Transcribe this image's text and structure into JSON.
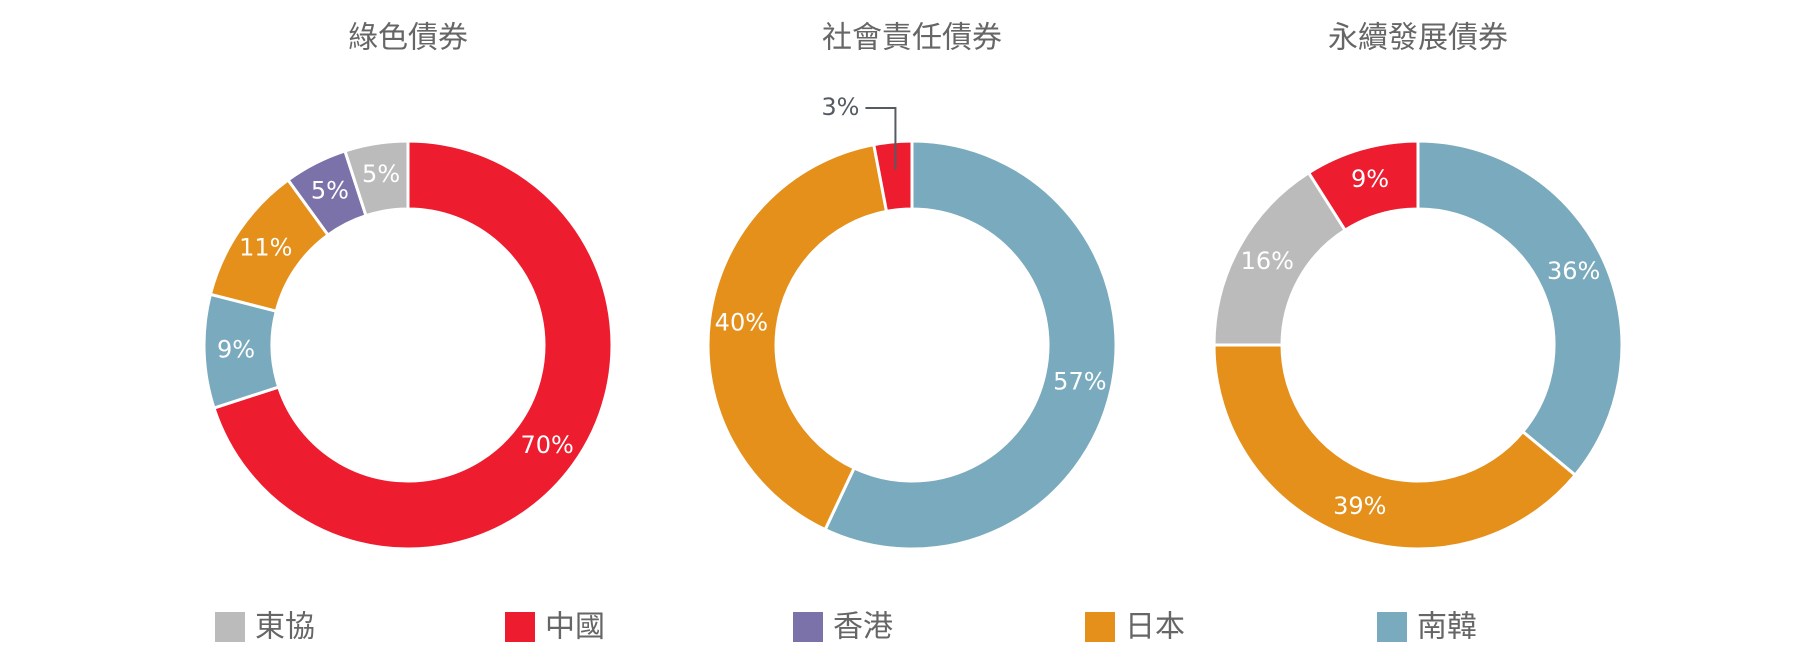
{
  "colors": {
    "東協": "#bbbbbb",
    "中國": "#ed1c2e",
    "香港": "#7a72a8",
    "日本": "#e4901b",
    "南韓": "#7aaabd"
  },
  "legend": [
    "東協",
    "中國",
    "香港",
    "日本",
    "南韓"
  ],
  "chart_data": [
    {
      "type": "pie",
      "title": "綠色債券",
      "slices": [
        {
          "category": "中國",
          "value": 70,
          "label": "70%"
        },
        {
          "category": "南韓",
          "value": 9,
          "label": "9%"
        },
        {
          "category": "日本",
          "value": 11,
          "label": "11%"
        },
        {
          "category": "香港",
          "value": 5,
          "label": "5%"
        },
        {
          "category": "東協",
          "value": 5,
          "label": "5%"
        }
      ]
    },
    {
      "type": "pie",
      "title": "社會責任債券",
      "slices": [
        {
          "category": "南韓",
          "value": 57,
          "label": "57%"
        },
        {
          "category": "日本",
          "value": 40,
          "label": "40%"
        },
        {
          "category": "中國",
          "value": 3,
          "label": "3%"
        }
      ]
    },
    {
      "type": "pie",
      "title": "永續發展債券",
      "slices": [
        {
          "category": "南韓",
          "value": 36,
          "label": "36%"
        },
        {
          "category": "日本",
          "value": 39,
          "label": "39%"
        },
        {
          "category": "東協",
          "value": 16,
          "label": "16%"
        },
        {
          "category": "中國",
          "value": 9,
          "label": "9%"
        }
      ]
    }
  ]
}
